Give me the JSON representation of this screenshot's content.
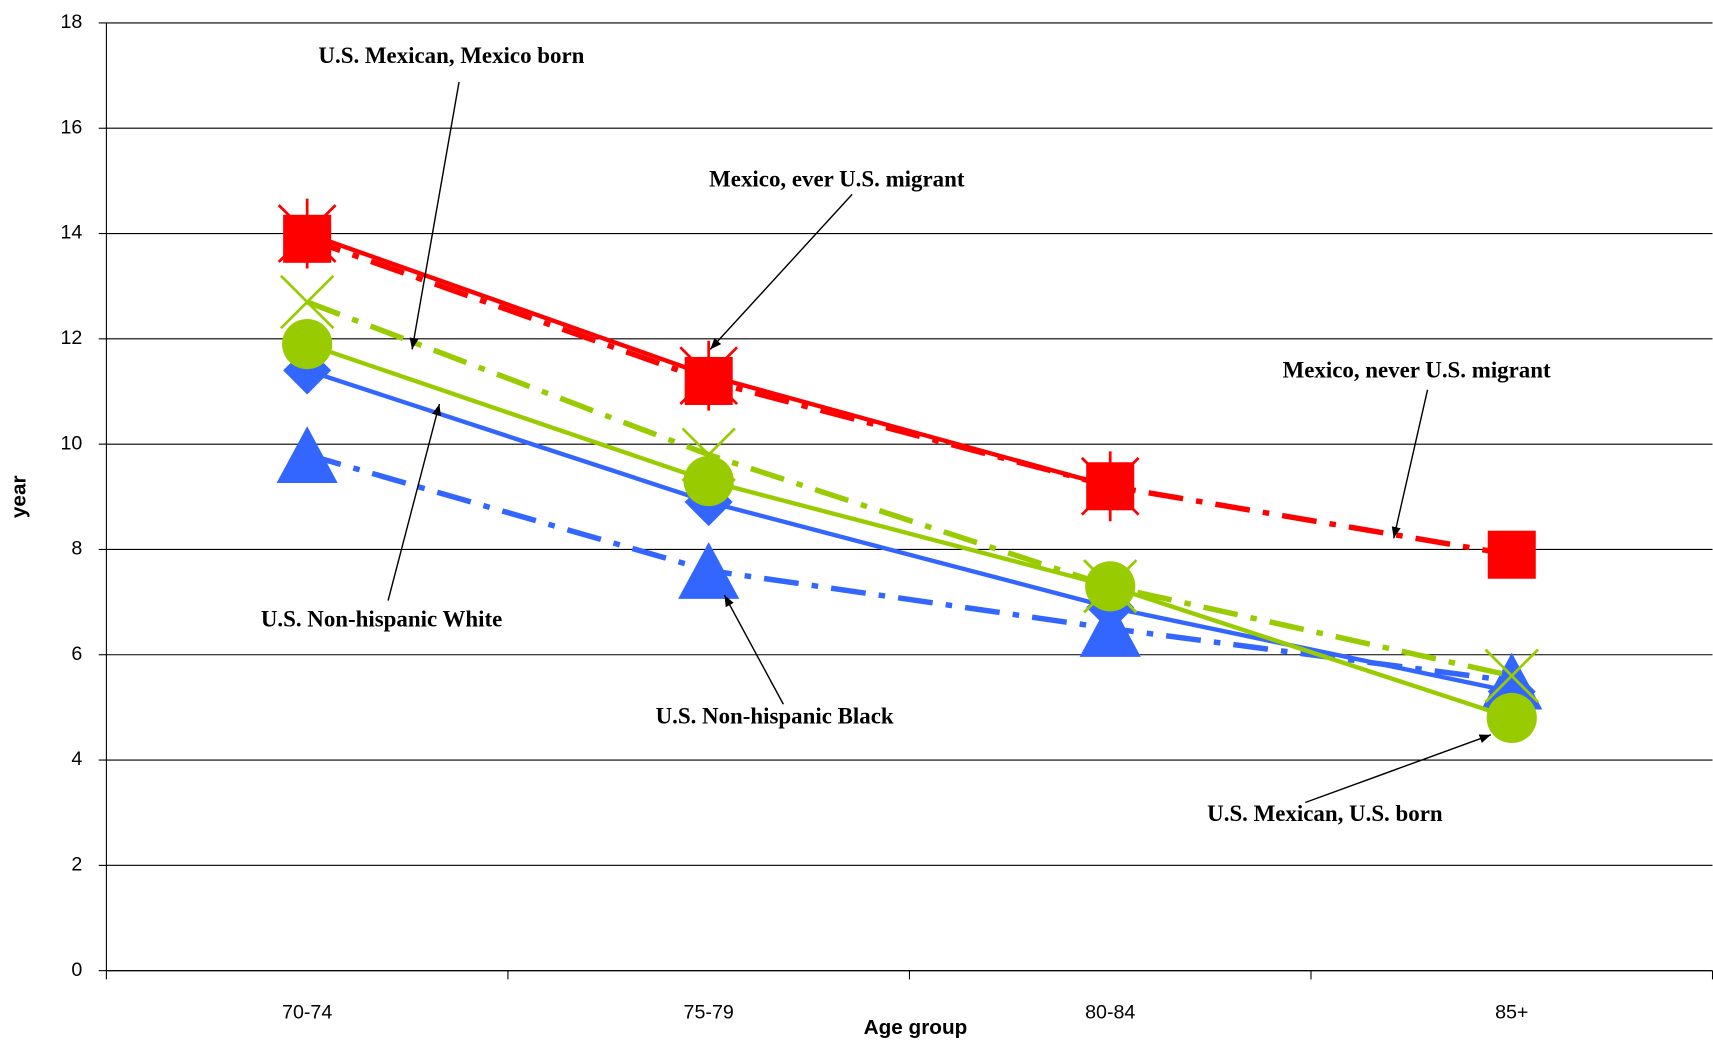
{
  "chart_data": {
    "type": "line",
    "x_label": "Age group",
    "y_label": "year",
    "categories": [
      "70-74",
      "75-79",
      "80-84",
      "85+"
    ],
    "ylim": [
      0,
      18
    ],
    "yticks": [
      0,
      2,
      4,
      6,
      8,
      10,
      12,
      14,
      16,
      18
    ],
    "grid": true,
    "series": [
      {
        "name": "U.S. Non-hispanic White",
        "color": "#3366ff",
        "style": "solid",
        "marker": "diamond",
        "values": [
          11.4,
          8.9,
          6.9,
          5.3
        ]
      },
      {
        "name": "U.S. Non-hispanic Black",
        "color": "#3366ff",
        "style": "dashdot",
        "marker": "triangle",
        "values": [
          9.8,
          7.6,
          6.5,
          5.5
        ]
      },
      {
        "name": "U.S. Mexican, U.S. born",
        "color": "#99cc00",
        "style": "solid",
        "marker": "circle",
        "values": [
          11.9,
          9.3,
          7.3,
          4.8
        ]
      },
      {
        "name": "U.S. Mexican, Mexico born",
        "color": "#99cc00",
        "style": "dashdot",
        "marker": "x",
        "values": [
          12.7,
          9.8,
          7.3,
          5.6
        ]
      },
      {
        "name": "Mexico, ever U.S. migrant",
        "color": "#ff0000",
        "style": "solid",
        "marker": "asterisk",
        "values": [
          14.0,
          11.3,
          9.2,
          null
        ]
      },
      {
        "name": "Mexico, never U.S. migrant",
        "color": "#ff0000",
        "style": "dashdot",
        "marker": "square",
        "values": [
          13.9,
          11.2,
          9.2,
          7.9
        ]
      }
    ]
  }
}
